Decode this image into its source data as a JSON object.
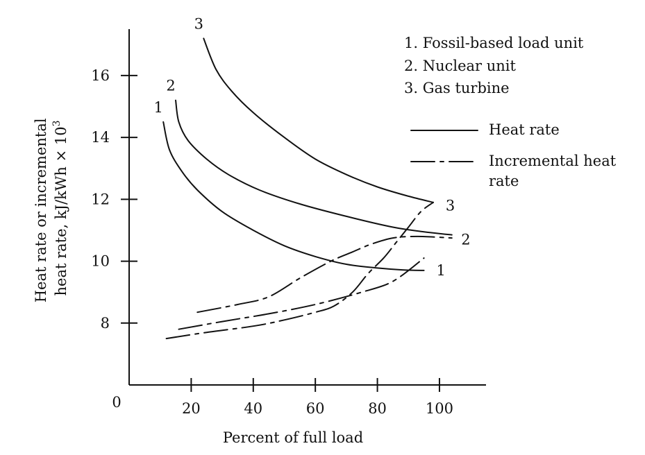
{
  "chart_data": {
    "type": "line",
    "title": "",
    "xlabel": "Percent of full load",
    "ylabel": [
      "Heat rate or incremental",
      "heat rate, kJ/kWh × 10",
      "3"
    ],
    "xlim": [
      0,
      115
    ],
    "ylim": [
      6,
      17.5
    ],
    "origin_label": "0",
    "x_ticks": [
      20,
      40,
      60,
      80,
      100
    ],
    "y_ticks": [
      8,
      10,
      12,
      14,
      16
    ],
    "grid": false,
    "legend": {
      "placement": "top-right",
      "units": [
        "1. Fossil-based load unit",
        "2. Nuclear unit",
        "3. Gas turbine"
      ],
      "styles": [
        {
          "style": "solid",
          "label": "Heat rate"
        },
        {
          "style": "dashdot",
          "label": [
            "Incremental heat",
            "rate"
          ]
        }
      ]
    },
    "series": [
      {
        "label": "1",
        "kind": "Heat rate",
        "style": "solid",
        "points": [
          [
            11,
            14.5
          ],
          [
            13,
            13.6
          ],
          [
            17,
            12.9
          ],
          [
            22,
            12.3
          ],
          [
            30,
            11.6
          ],
          [
            40,
            11.0
          ],
          [
            50,
            10.5
          ],
          [
            60,
            10.15
          ],
          [
            70,
            9.9
          ],
          [
            80,
            9.78
          ],
          [
            88,
            9.72
          ],
          [
            95,
            9.7
          ]
        ],
        "end_label_at": [
          99,
          9.7
        ]
      },
      {
        "label": "2",
        "kind": "Heat rate",
        "style": "solid",
        "points": [
          [
            15,
            15.2
          ],
          [
            16,
            14.5
          ],
          [
            19,
            13.9
          ],
          [
            25,
            13.3
          ],
          [
            32,
            12.8
          ],
          [
            42,
            12.3
          ],
          [
            55,
            11.85
          ],
          [
            70,
            11.45
          ],
          [
            85,
            11.1
          ],
          [
            95,
            10.95
          ],
          [
            104,
            10.85
          ]
        ],
        "end_label_at": [
          107,
          10.7
        ]
      },
      {
        "label": "3",
        "kind": "Heat rate",
        "style": "solid",
        "points": [
          [
            24,
            17.2
          ],
          [
            28,
            16.2
          ],
          [
            33,
            15.5
          ],
          [
            40,
            14.8
          ],
          [
            50,
            14.0
          ],
          [
            60,
            13.3
          ],
          [
            70,
            12.8
          ],
          [
            80,
            12.4
          ],
          [
            90,
            12.1
          ],
          [
            98,
            11.9
          ]
        ],
        "end_label_at": [
          102,
          11.8
        ]
      },
      {
        "label": "1",
        "kind": "Incremental heat rate",
        "style": "dashdot",
        "points": [
          [
            16,
            7.8
          ],
          [
            30,
            8.05
          ],
          [
            45,
            8.3
          ],
          [
            60,
            8.6
          ],
          [
            75,
            9.0
          ],
          [
            85,
            9.35
          ],
          [
            95,
            10.1
          ]
        ]
      },
      {
        "label": "2",
        "kind": "Incremental heat rate",
        "style": "dashdot",
        "points": [
          [
            22,
            8.35
          ],
          [
            35,
            8.6
          ],
          [
            45,
            8.85
          ],
          [
            55,
            9.45
          ],
          [
            65,
            10.0
          ],
          [
            72,
            10.3
          ],
          [
            78,
            10.55
          ],
          [
            85,
            10.75
          ],
          [
            93,
            10.8
          ],
          [
            104,
            10.75
          ]
        ]
      },
      {
        "label": "3",
        "kind": "Incremental heat rate",
        "style": "dashdot",
        "points": [
          [
            12,
            7.5
          ],
          [
            25,
            7.7
          ],
          [
            40,
            7.9
          ],
          [
            50,
            8.1
          ],
          [
            60,
            8.35
          ],
          [
            66,
            8.55
          ],
          [
            72,
            9.0
          ],
          [
            77,
            9.6
          ],
          [
            82,
            10.1
          ],
          [
            86,
            10.6
          ],
          [
            90,
            11.1
          ],
          [
            94,
            11.6
          ],
          [
            98,
            11.9
          ]
        ]
      }
    ]
  }
}
